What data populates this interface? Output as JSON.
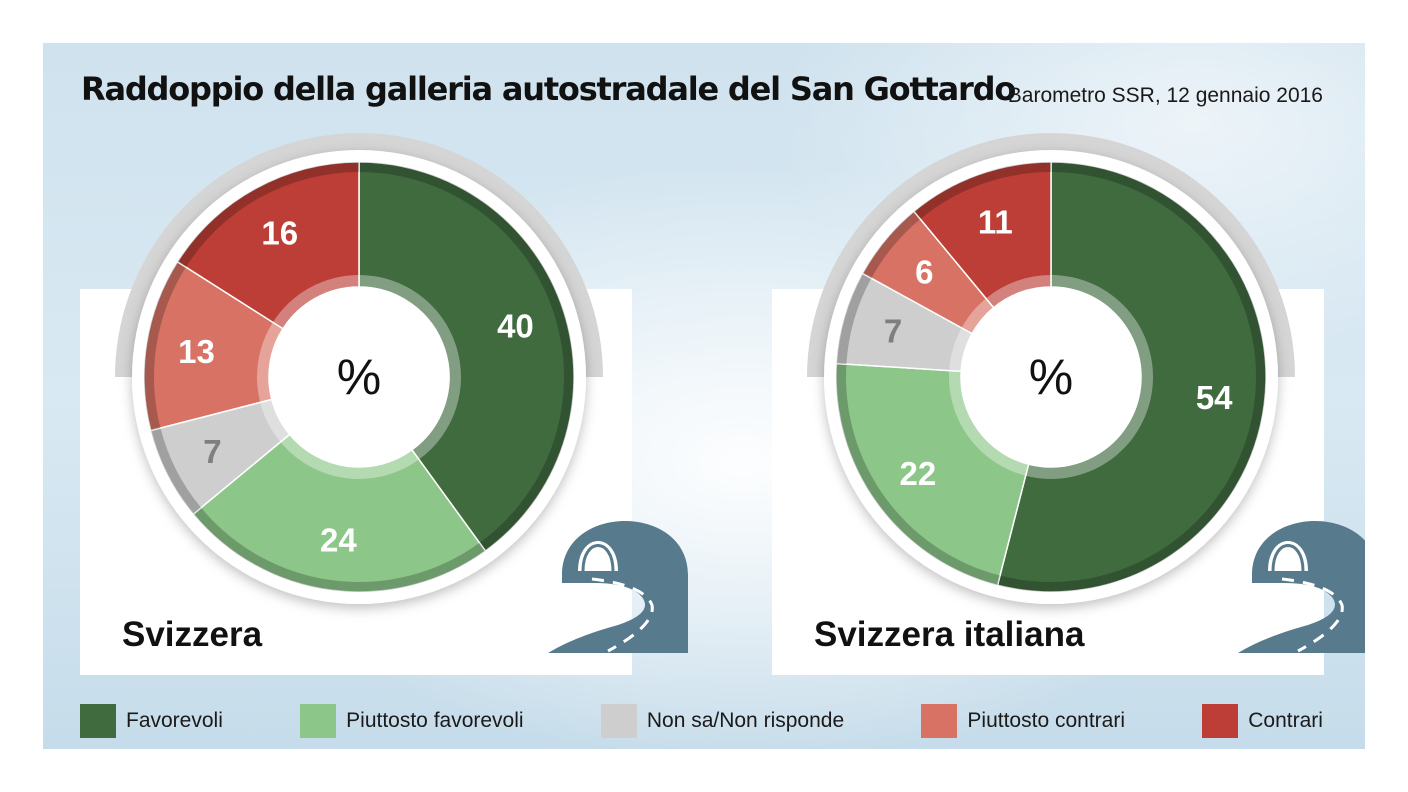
{
  "header": {
    "title": "Raddoppio della galleria autostradale del San Gottardo",
    "subtitle": "Barometro SSR, 12 gennaio 2016"
  },
  "colors": {
    "favorevoli": "#3f6b3f",
    "piuttosto_favorevoli": "#8cc688",
    "non_sa": "#cecece",
    "piuttosto_contrari": "#d87264",
    "contrari": "#bc3e36",
    "tunnel": "#577a8d"
  },
  "legend": [
    {
      "label": "Favorevoli",
      "color": "#3f6b3f"
    },
    {
      "label": "Piuttosto favorevoli",
      "color": "#8cc688"
    },
    {
      "label": "Non sa/Non risponde",
      "color": "#cecece"
    },
    {
      "label": "Piuttosto contrari",
      "color": "#d87264"
    },
    {
      "label": "Contrari",
      "color": "#bc3e36"
    }
  ],
  "chart_data": [
    {
      "type": "pie",
      "title": "Svizzera",
      "center_label": "%",
      "categories": [
        "Favorevoli",
        "Piuttosto favorevoli",
        "Non sa/Non risponde",
        "Piuttosto contrari",
        "Contrari"
      ],
      "values": [
        40,
        24,
        7,
        13,
        16
      ],
      "value_labels": [
        "40",
        "24",
        "7",
        "13",
        "16"
      ],
      "colors": [
        "#3f6b3f",
        "#8cc688",
        "#cecece",
        "#d87264",
        "#bc3e36"
      ],
      "legend": "bottom"
    },
    {
      "type": "pie",
      "title": "Svizzera italiana",
      "center_label": "%",
      "categories": [
        "Favorevoli",
        "Piuttosto favorevoli",
        "Non sa/Non risponde",
        "Piuttosto contrari",
        "Contrari"
      ],
      "values": [
        54,
        22,
        7,
        6,
        11
      ],
      "value_labels": [
        "54",
        "22",
        "7",
        "6",
        "11"
      ],
      "colors": [
        "#3f6b3f",
        "#8cc688",
        "#cecece",
        "#d87264",
        "#bc3e36"
      ],
      "legend": "bottom"
    }
  ]
}
